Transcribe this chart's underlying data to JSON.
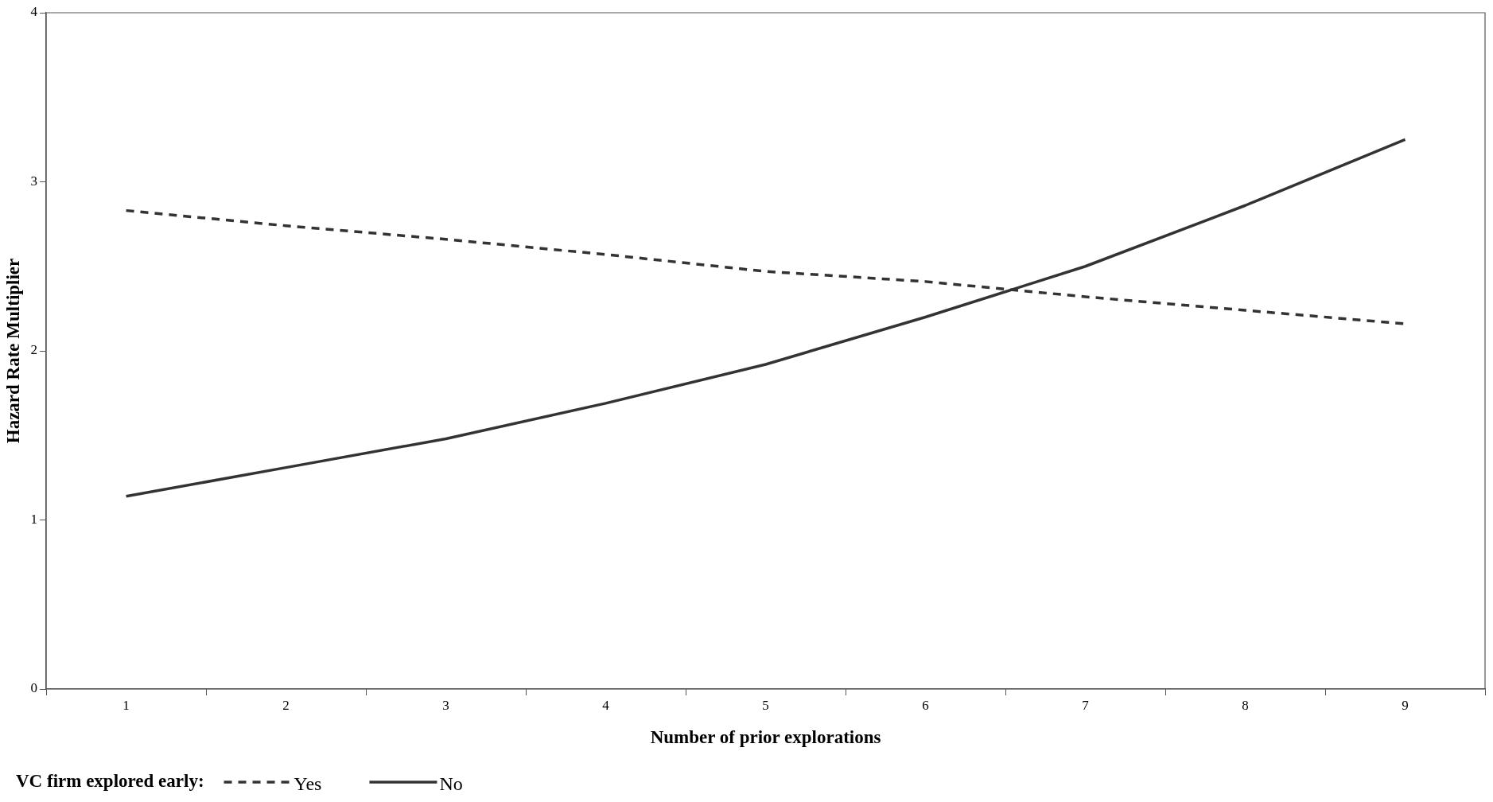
{
  "chart_data": {
    "type": "line",
    "xlabel": "Number of prior explorations",
    "ylabel": "Hazard Rate Multiplier",
    "legend_title": "VC firm explored early:",
    "categories": [
      "1",
      "2",
      "3",
      "4",
      "5",
      "6",
      "7",
      "8",
      "9"
    ],
    "series": [
      {
        "name": "Yes",
        "color": "#333333",
        "line_style": "dashed",
        "values": [
          2.83,
          2.74,
          2.66,
          2.57,
          2.47,
          2.41,
          2.32,
          2.24,
          2.16
        ]
      },
      {
        "name": "No",
        "color": "#333333",
        "line_style": "solid",
        "values": [
          1.14,
          1.31,
          1.48,
          1.69,
          1.92,
          2.2,
          2.5,
          2.86,
          3.25
        ]
      }
    ],
    "ylim": [
      0,
      4
    ],
    "yticks": [
      0,
      1,
      2,
      3,
      4
    ],
    "grid": false,
    "legend": "bottom left",
    "marker": "none"
  }
}
